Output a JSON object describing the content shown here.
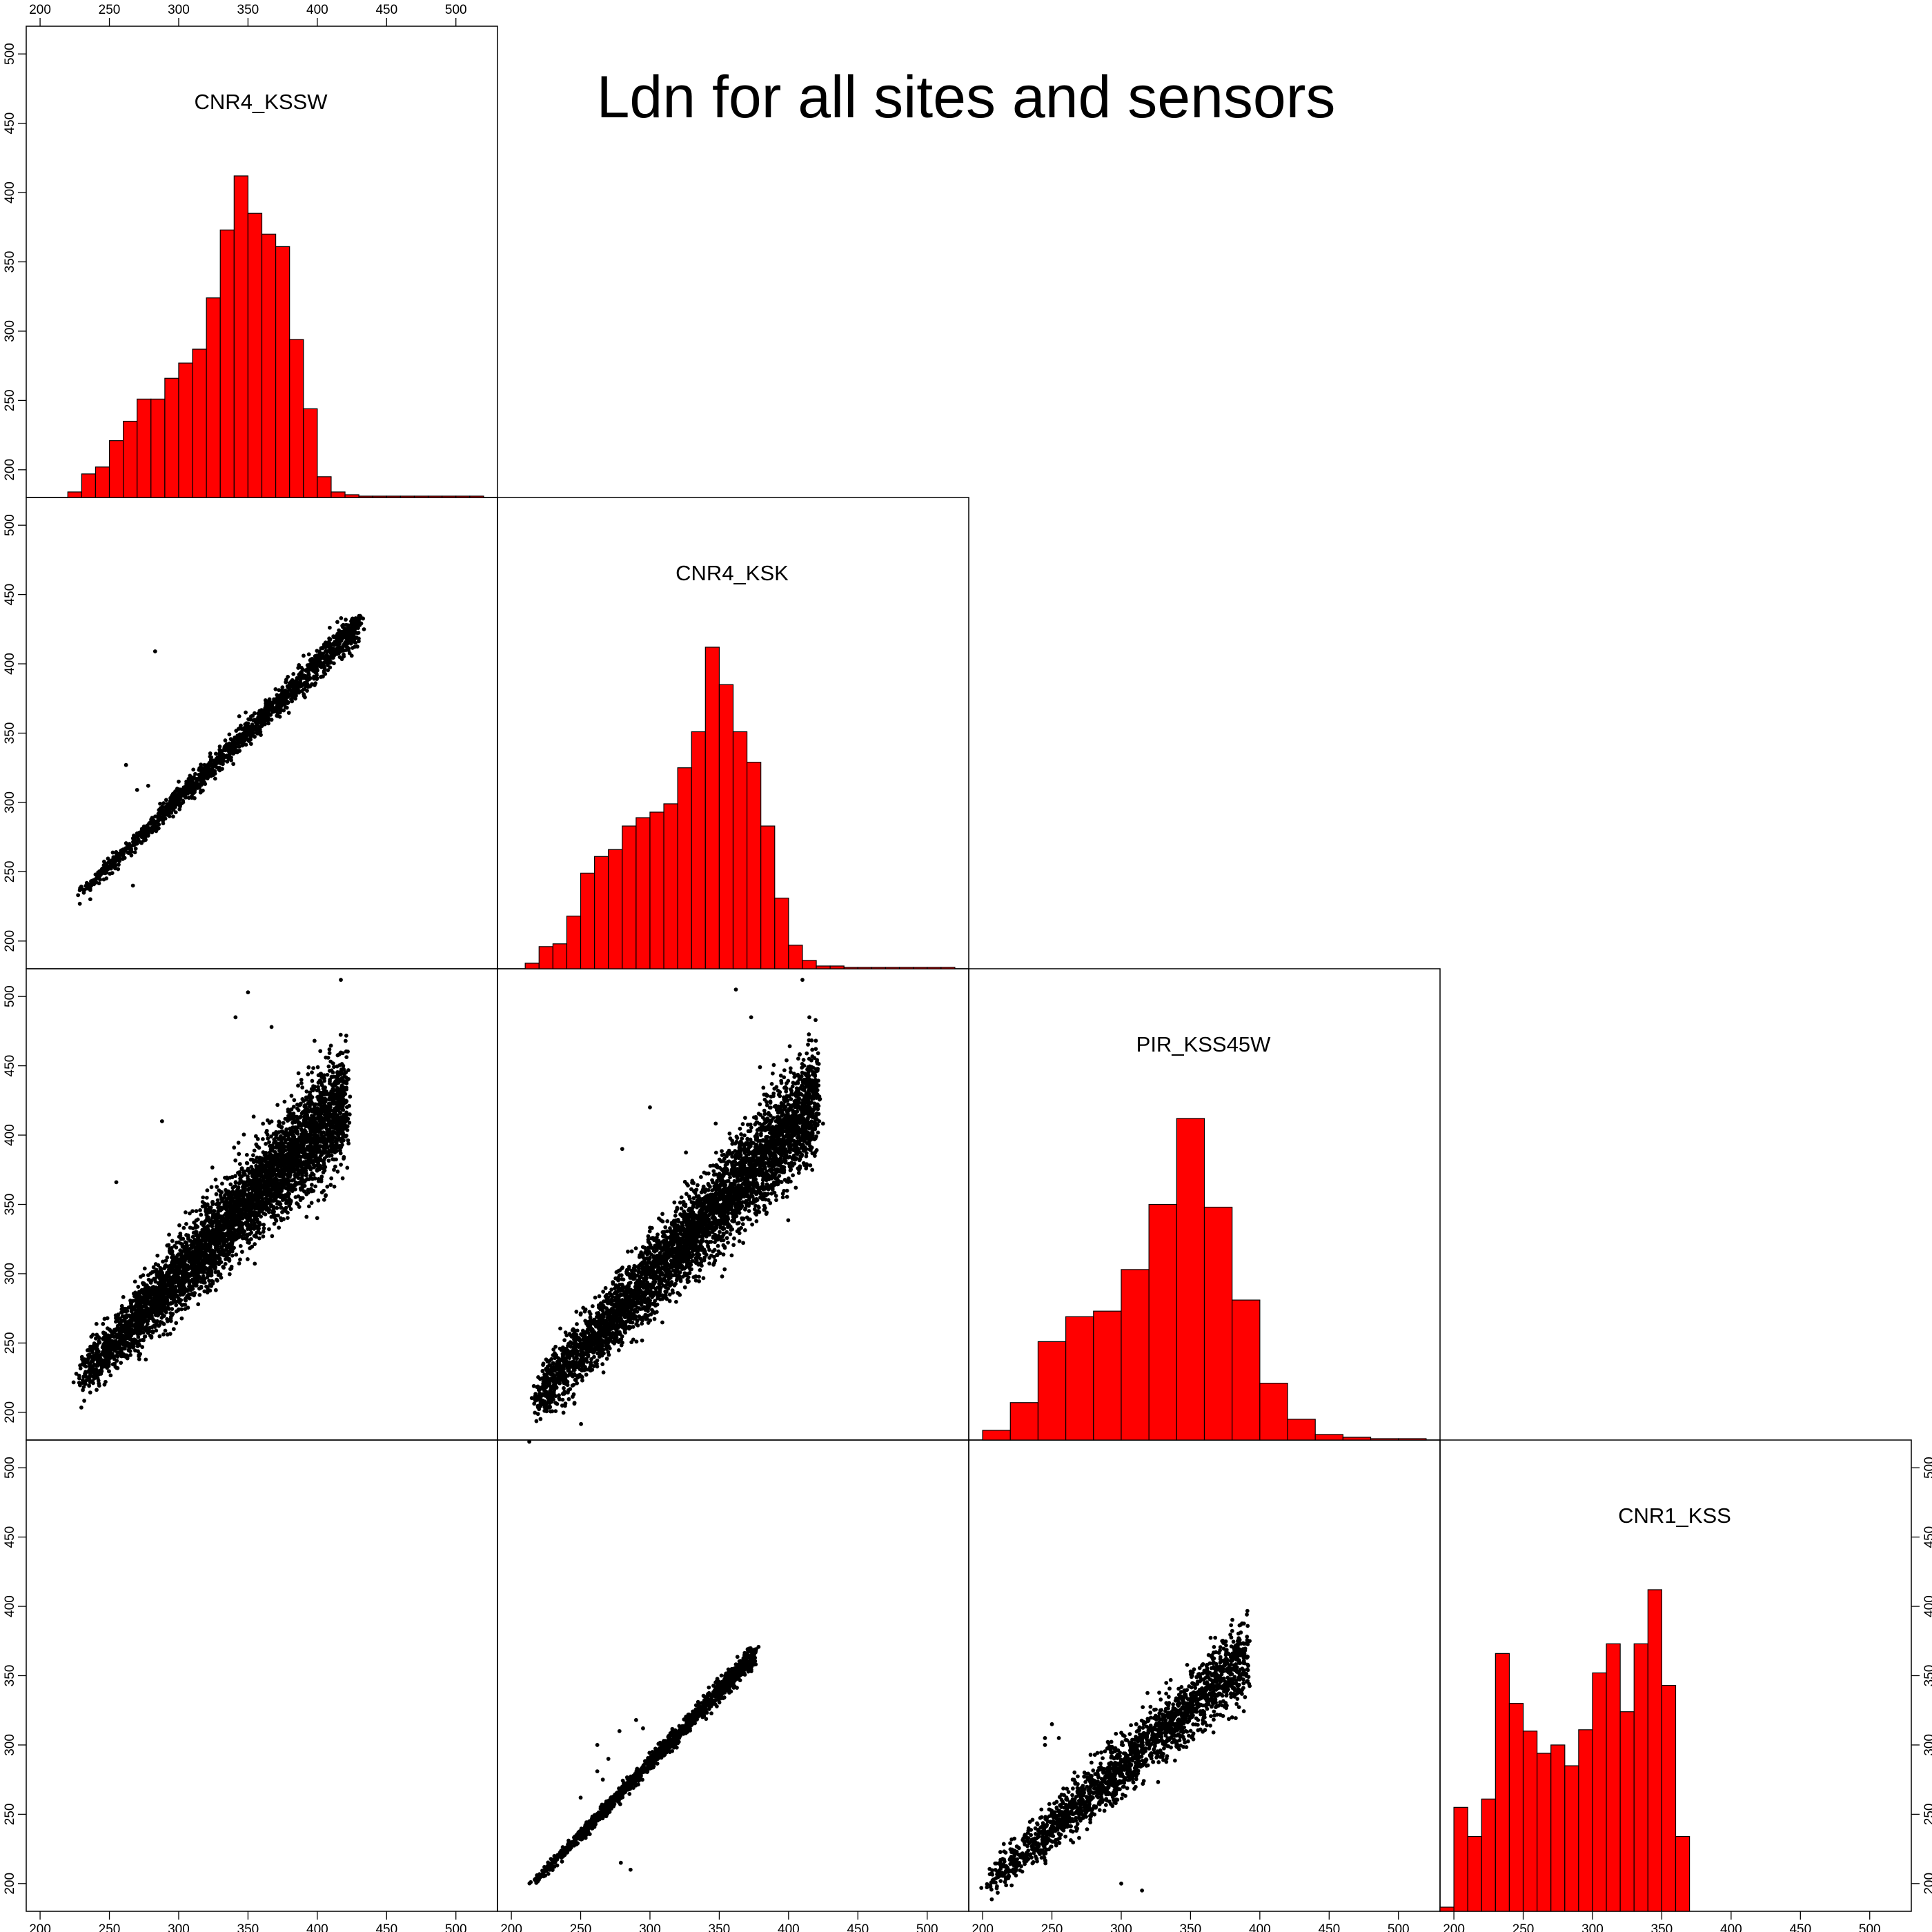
{
  "chart_data": {
    "type": "scatter",
    "title": "Ldn for all sites and sensors",
    "axis": {
      "xlim": [
        190,
        530
      ],
      "ylim": [
        180,
        520
      ],
      "ticks": [
        200,
        250,
        300,
        350,
        400,
        450,
        500
      ],
      "tick_labels": [
        "200",
        "250",
        "300",
        "350",
        "400",
        "450",
        "500"
      ]
    },
    "variables": [
      "CNR4_KSSW",
      "CNR4_KSK",
      "PIR_KSS45W",
      "CNR1_KSS"
    ],
    "colors": {
      "hist_fill": "#ff0000",
      "hist_edge": "#000000",
      "points": "#000000"
    },
    "histograms": [
      {
        "name": "CNR4_KSSW",
        "bin_edges": [
          220,
          230,
          240,
          250,
          260,
          270,
          280,
          290,
          300,
          310,
          320,
          330,
          340,
          350,
          360,
          370,
          380,
          390,
          400,
          410,
          420,
          430,
          440,
          450,
          460,
          470,
          480,
          490,
          500,
          510,
          520
        ],
        "bar_tops": [
          184,
          197,
          202,
          221,
          235,
          251,
          251,
          266,
          277,
          287,
          324,
          373,
          412,
          385,
          370,
          361,
          294,
          244,
          195,
          184,
          182,
          181,
          181,
          181,
          181,
          181,
          181,
          181,
          181,
          181
        ]
      },
      {
        "name": "CNR4_KSK",
        "bin_edges": [
          210,
          220,
          230,
          240,
          250,
          260,
          270,
          280,
          290,
          300,
          310,
          320,
          330,
          340,
          350,
          360,
          370,
          380,
          390,
          400,
          410,
          420,
          430,
          440,
          450,
          460,
          470,
          480,
          490,
          500,
          510,
          520
        ],
        "bar_tops": [
          184,
          196,
          198,
          218,
          249,
          261,
          266,
          283,
          289,
          293,
          299,
          325,
          351,
          412,
          385,
          351,
          329,
          283,
          231,
          197,
          186,
          182,
          182,
          181,
          181,
          181,
          181,
          181,
          181,
          181,
          181
        ]
      },
      {
        "name": "PIR_KSS45W",
        "bin_edges": [
          200,
          220,
          240,
          260,
          280,
          300,
          320,
          340,
          360,
          380,
          400,
          420,
          440,
          460,
          480,
          500,
          520
        ],
        "bar_tops": [
          187,
          207,
          251,
          269,
          273,
          303,
          350,
          412,
          348,
          281,
          221,
          195,
          184,
          182,
          181,
          181
        ]
      },
      {
        "name": "CNR1_KSS",
        "bin_edges": [
          190,
          200,
          210,
          220,
          230,
          240,
          250,
          260,
          270,
          280,
          290,
          300,
          310,
          320,
          330,
          340,
          350,
          360,
          370
        ],
        "bar_tops": [
          183,
          255,
          234,
          261,
          366,
          330,
          310,
          294,
          300,
          285,
          311,
          352,
          373,
          324,
          373,
          412,
          343,
          234
        ]
      }
    ],
    "scatter_panels": [
      {
        "row": "CNR4_KSK",
        "col": "CNR4_KSSW",
        "trend": {
          "x": [
            225,
            435
          ],
          "y": [
            230,
            433
          ]
        },
        "spread": 6,
        "n": 1500,
        "outliers": [
          [
            283,
            409
          ],
          [
            262,
            327
          ],
          [
            267,
            240
          ],
          [
            240,
            248
          ],
          [
            270,
            309
          ],
          [
            278,
            312
          ],
          [
            300,
            315
          ]
        ]
      },
      {
        "row": "PIR_KSS45W",
        "col": "CNR4_KSSW",
        "trend": {
          "x": [
            225,
            425
          ],
          "y": [
            220,
            430
          ]
        },
        "spread": 20,
        "n": 4500,
        "outliers": [
          [
            350,
            503
          ],
          [
            417,
            512
          ],
          [
            341,
            485
          ],
          [
            367,
            478
          ],
          [
            255,
            366
          ],
          [
            288,
            410
          ],
          [
            398,
            468
          ]
        ]
      },
      {
        "row": "PIR_KSS45W",
        "col": "CNR4_KSK",
        "trend": {
          "x": [
            212,
            425
          ],
          "y": [
            203,
            430
          ]
        },
        "spread": 20,
        "n": 4500,
        "outliers": [
          [
            362,
            505
          ],
          [
            410,
            512
          ],
          [
            415,
            485
          ],
          [
            373,
            485
          ],
          [
            280,
            390
          ],
          [
            300,
            420
          ]
        ]
      },
      {
        "row": "CNR1_KSS",
        "col": "CNR4_KSK",
        "trend": {
          "x": [
            212,
            378
          ],
          "y": [
            196,
            368
          ]
        },
        "spread": 4,
        "n": 1400,
        "outliers": [
          [
            270,
            290
          ],
          [
            278,
            310
          ],
          [
            290,
            318
          ],
          [
            295,
            312
          ],
          [
            262,
            281
          ],
          [
            266,
            275
          ],
          [
            279,
            215
          ],
          [
            286,
            210
          ],
          [
            250,
            262
          ],
          [
            262,
            300
          ]
        ]
      },
      {
        "row": "CNR1_KSS",
        "col": "PIR_KSS45W",
        "trend": {
          "x": [
            200,
            395
          ],
          "y": [
            196,
            368
          ]
        },
        "spread": 14,
        "n": 2000,
        "outliers": [
          [
            245,
            300
          ],
          [
            250,
            315
          ],
          [
            255,
            305
          ],
          [
            245,
            305
          ],
          [
            315,
            195
          ],
          [
            300,
            200
          ],
          [
            230,
            230
          ],
          [
            236,
            246
          ],
          [
            265,
            275
          ]
        ]
      }
    ]
  }
}
